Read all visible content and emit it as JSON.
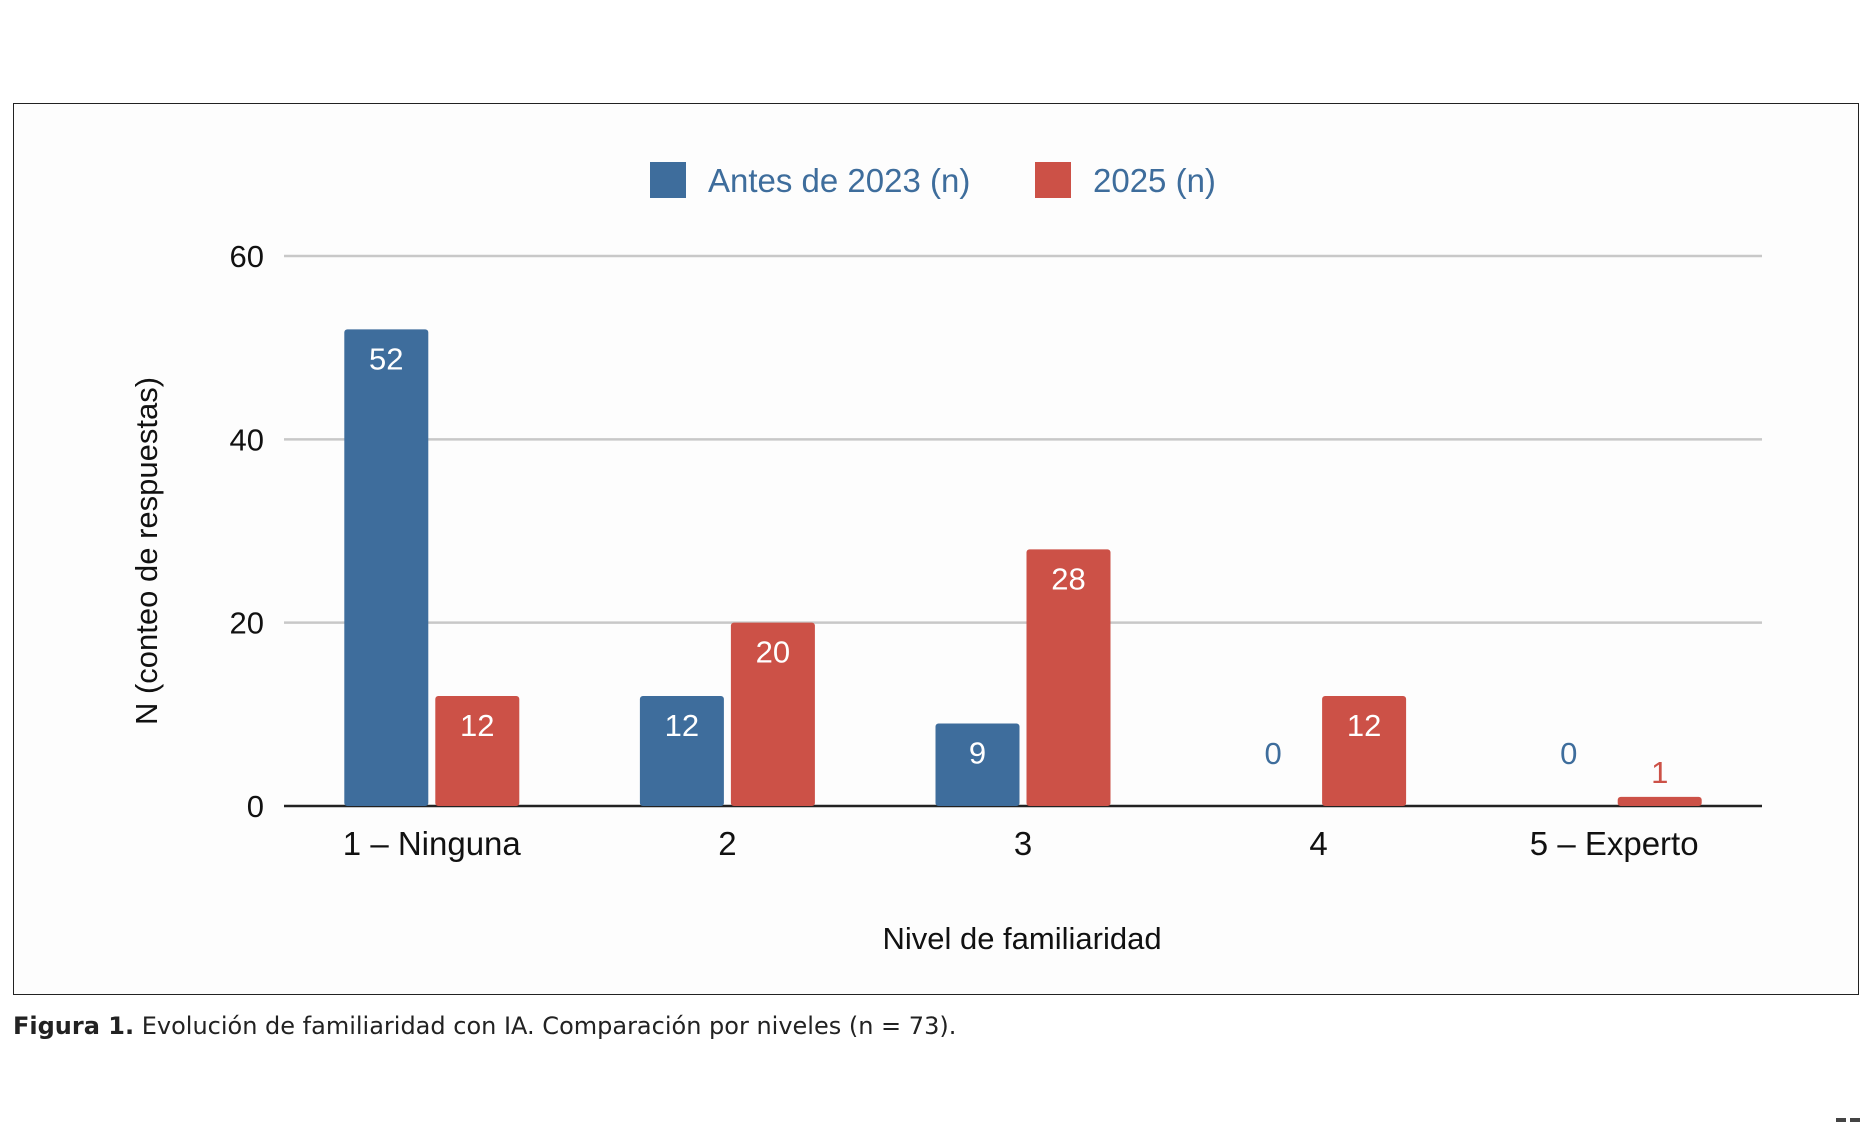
{
  "chart_data": {
    "type": "bar",
    "categories": [
      "1 – Ninguna",
      "2",
      "3",
      "4",
      "5 – Experto"
    ],
    "series": [
      {
        "name": "Antes de 2023 (n)",
        "values": [
          52,
          12,
          9,
          0,
          0
        ],
        "color": "#3e6d9c"
      },
      {
        "name": "2025 (n)",
        "values": [
          12,
          20,
          28,
          12,
          1
        ],
        "color": "#cc5147"
      }
    ],
    "xlabel": "Nivel de familiaridad",
    "ylabel": "N (conteo de respuestas)",
    "ylim": [
      0,
      60
    ],
    "yticks": [
      0,
      20,
      40,
      60
    ],
    "grid": true,
    "legend": "top-center"
  },
  "caption": {
    "label": "Figura 1.",
    "text": " Evolución de familiaridad con IA. Comparación por niveles (n = 73)."
  },
  "colors": {
    "grid": "#c8c8c8",
    "axis": "#222222",
    "legend_text": "#3e6d9c"
  }
}
